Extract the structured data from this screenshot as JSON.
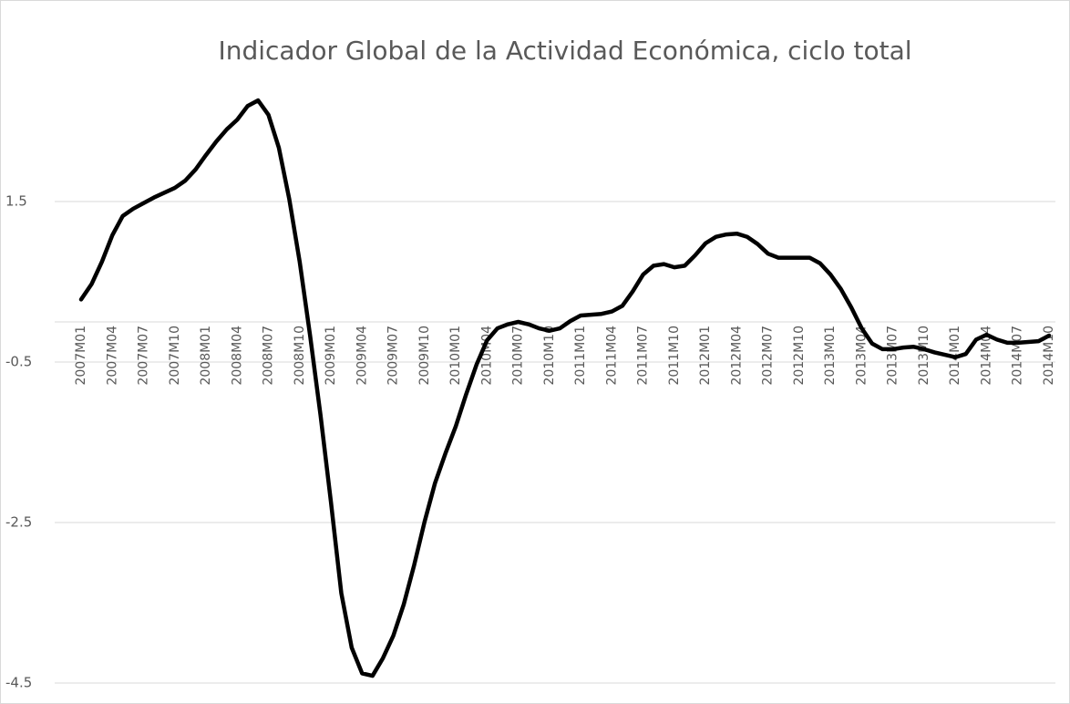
{
  "chart_data": {
    "type": "line",
    "title": "Indicador Global de la Actividad Económica, ciclo total",
    "categories": [
      "2007M01",
      null,
      null,
      "2007M04",
      null,
      null,
      "2007M07",
      null,
      null,
      "2007M10",
      null,
      null,
      "2008M01",
      null,
      null,
      "2008M04",
      null,
      null,
      "2008M07",
      null,
      null,
      "2008M10",
      null,
      null,
      "2009M01",
      null,
      null,
      "2009M04",
      null,
      null,
      "2009M07",
      null,
      null,
      "2009M10",
      null,
      null,
      "2010M01",
      null,
      null,
      "2010M04",
      null,
      null,
      "2010M07",
      null,
      null,
      "2010M10",
      null,
      null,
      "2011M01",
      null,
      null,
      "2011M04",
      null,
      null,
      "2011M07",
      null,
      null,
      "2011M10",
      null,
      null,
      "2012M01",
      null,
      null,
      "2012M04",
      null,
      null,
      "2012M07",
      null,
      null,
      "2012M10",
      null,
      null,
      "2013M01",
      null,
      null,
      "2013M04",
      null,
      null,
      "2013M07",
      null,
      null,
      "2013M10",
      null,
      null,
      "2014M01",
      null,
      null,
      "2014M04",
      null,
      null,
      "2014M07",
      null,
      null,
      "2014M10"
    ],
    "values": [
      0.28,
      0.47,
      0.75,
      1.08,
      1.32,
      1.41,
      1.48,
      1.55,
      1.61,
      1.67,
      1.76,
      1.9,
      2.08,
      2.25,
      2.4,
      2.52,
      2.69,
      2.76,
      2.58,
      2.17,
      1.53,
      0.75,
      -0.17,
      -1.16,
      -2.24,
      -3.38,
      -4.06,
      -4.38,
      -4.41,
      -4.19,
      -3.91,
      -3.52,
      -3.03,
      -2.49,
      -2.01,
      -1.64,
      -1.3,
      -0.9,
      -0.53,
      -0.23,
      -0.08,
      -0.03,
      0.0,
      -0.03,
      -0.08,
      -0.11,
      -0.08,
      0.01,
      0.08,
      0.09,
      0.1,
      0.13,
      0.2,
      0.38,
      0.59,
      0.7,
      0.72,
      0.68,
      0.7,
      0.83,
      0.98,
      1.06,
      1.09,
      1.1,
      1.06,
      0.97,
      0.85,
      0.8,
      0.8,
      0.8,
      0.8,
      0.73,
      0.59,
      0.41,
      0.18,
      -0.08,
      -0.27,
      -0.34,
      -0.34,
      -0.32,
      -0.31,
      -0.34,
      -0.38,
      -0.41,
      -0.44,
      -0.4,
      -0.22,
      -0.16,
      -0.22,
      -0.26,
      -0.26,
      -0.25,
      -0.24,
      -0.17
    ],
    "color": "#000000",
    "ylim": [
      -4.5,
      3.5
    ],
    "yticks": [
      -4.5,
      -2.5,
      -0.5,
      1.5
    ],
    "grid": true
  }
}
